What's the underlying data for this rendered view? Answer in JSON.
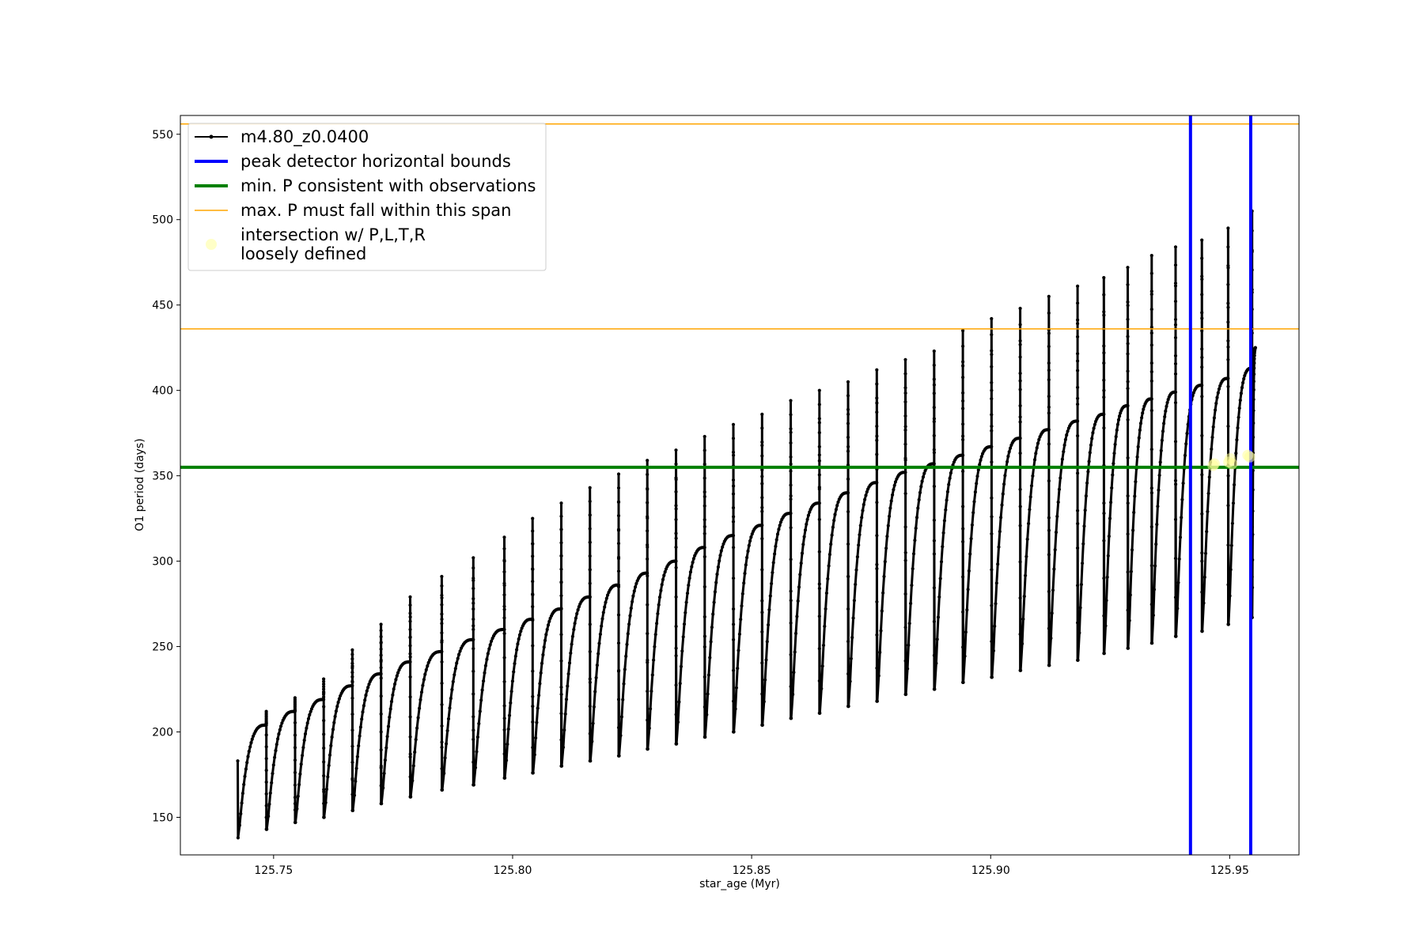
{
  "chart_data": {
    "type": "line",
    "title": "",
    "xlabel": "star_age (Myr)",
    "ylabel": "O1 period (days)",
    "xlim": [
      125.7305,
      125.9645
    ],
    "ylim": [
      128,
      561
    ],
    "x_ticks": [
      125.75,
      125.8,
      125.85,
      125.9,
      125.95
    ],
    "x_tick_labels": [
      "125.75",
      "125.80",
      "125.85",
      "125.90",
      "125.95"
    ],
    "y_ticks": [
      150,
      200,
      250,
      300,
      350,
      400,
      450,
      500,
      550
    ],
    "y_tick_labels": [
      "150",
      "200",
      "250",
      "300",
      "350",
      "400",
      "450",
      "500",
      "550"
    ],
    "grid": false,
    "legend_placement": "upper-left",
    "series": [
      {
        "name": "m4.80_z0.0400",
        "color": "#000000",
        "style": "line-with-point-markers",
        "pulses": {
          "x_start": [
            125.7425,
            125.7485,
            125.7545,
            125.7605,
            125.7665,
            125.7725,
            125.7786,
            125.7852,
            125.7918,
            125.7983,
            125.8042,
            125.8102,
            125.8162,
            125.8222,
            125.8282,
            125.8342,
            125.8402,
            125.8462,
            125.8522,
            125.8582,
            125.8642,
            125.8702,
            125.8762,
            125.8822,
            125.8882,
            125.8942,
            125.9002,
            125.9062,
            125.9122,
            125.9182,
            125.9237,
            125.9287,
            125.9337,
            125.9387,
            125.9442,
            125.9497,
            125.9547
          ],
          "p_start": [
            183,
            150,
            158,
            165,
            172,
            180,
            187,
            194,
            201,
            208,
            215,
            222,
            229,
            236,
            242,
            249,
            256,
            263,
            270,
            277,
            284,
            291,
            298,
            305,
            312,
            319,
            326,
            332,
            318,
            322,
            328,
            334,
            340,
            345,
            300,
            350,
            320
          ],
          "p_min": [
            138,
            143,
            147,
            150,
            154,
            158,
            162,
            166,
            169,
            173,
            176,
            180,
            183,
            186,
            190,
            193,
            197,
            200,
            204,
            208,
            211,
            215,
            218,
            222,
            225,
            229,
            232,
            236,
            239,
            242,
            246,
            249,
            252,
            256,
            259,
            263,
            267
          ],
          "p_max": [
            204,
            212,
            219,
            227,
            234,
            241,
            247,
            254,
            260,
            266,
            272,
            279,
            286,
            293,
            300,
            308,
            315,
            321,
            328,
            334,
            340,
            346,
            352,
            357,
            362,
            367,
            372,
            377,
            382,
            386,
            391,
            395,
            399,
            403,
            407,
            413,
            421
          ],
          "spike_top": [
            190,
            212,
            220,
            231,
            248,
            263,
            279,
            291,
            302,
            314,
            325,
            334,
            343,
            351,
            359,
            365,
            373,
            380,
            386,
            394,
            400,
            405,
            412,
            418,
            423,
            435,
            442,
            448,
            455,
            461,
            466,
            472,
            479,
            484,
            488,
            495,
            505
          ],
          "x_end": 125.9554,
          "p_end": 425
        }
      },
      {
        "name": "peak detector horizontal bounds",
        "color": "#0000ff",
        "style": "vertical-lines",
        "x": [
          125.9418,
          125.9544
        ]
      },
      {
        "name": "min. P consistent with observations",
        "color": "#008000",
        "style": "horizontal-line",
        "y": [
          355
        ]
      },
      {
        "name": "max. P must fall within this span",
        "color": "#ffa500",
        "style": "horizontal-lines",
        "y": [
          436,
          556
        ]
      },
      {
        "name": "intersection w/ P,L,T,R\nloosely defined",
        "color": "#ffff99",
        "style": "scatter",
        "points": [
          {
            "x": 125.9465,
            "y": 356
          },
          {
            "x": 125.9468,
            "y": 357
          },
          {
            "x": 125.9498,
            "y": 358
          },
          {
            "x": 125.9501,
            "y": 360
          },
          {
            "x": 125.9505,
            "y": 357
          },
          {
            "x": 125.9538,
            "y": 362
          },
          {
            "x": 125.9542,
            "y": 361
          }
        ]
      }
    ]
  },
  "legend": {
    "items": [
      {
        "label_lines": [
          "m4.80_z0.0400"
        ],
        "kind": "line-marker",
        "color": "#000000"
      },
      {
        "label_lines": [
          "peak detector horizontal bounds"
        ],
        "kind": "thick-line",
        "color": "#0000ff"
      },
      {
        "label_lines": [
          "min. P consistent with observations"
        ],
        "kind": "thick-line",
        "color": "#008000"
      },
      {
        "label_lines": [
          "max. P must fall within this span"
        ],
        "kind": "thin-line",
        "color": "#ffa500"
      },
      {
        "label_lines": [
          "intersection w/ P,L,T,R",
          "loosely defined"
        ],
        "kind": "dot",
        "color": "#ffff99"
      }
    ]
  }
}
